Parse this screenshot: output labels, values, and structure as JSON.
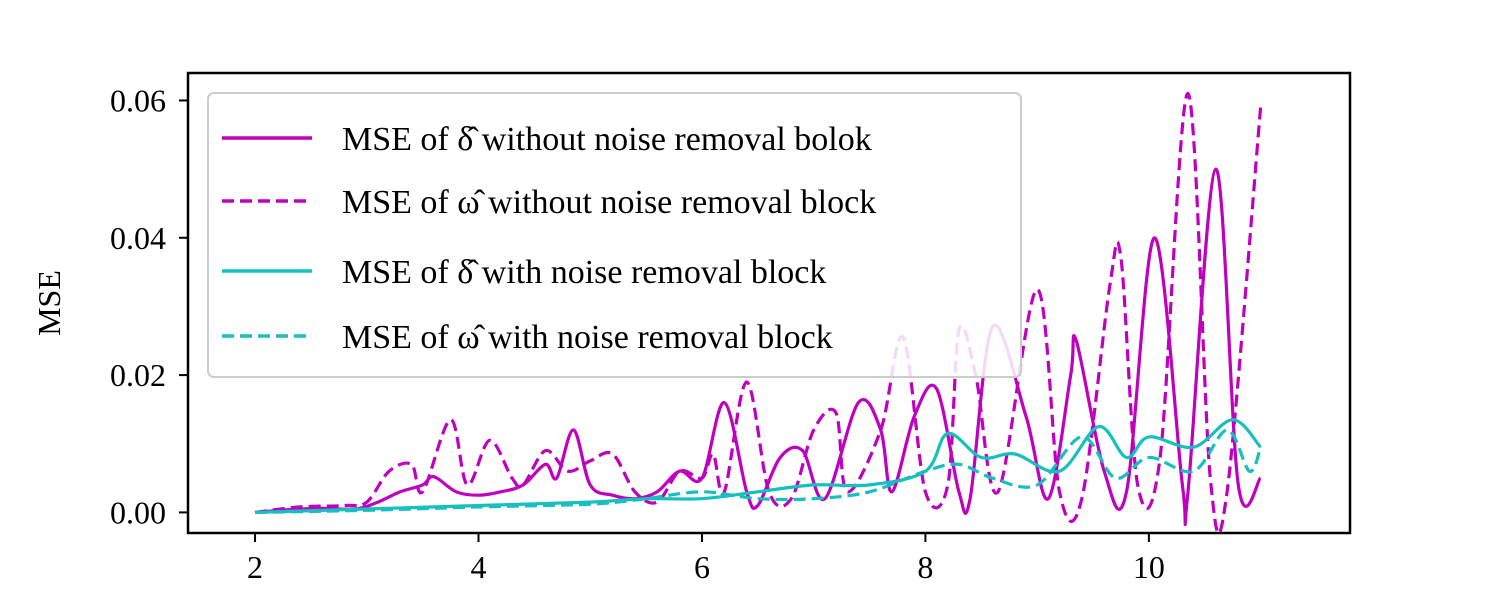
{
  "chart_data": {
    "type": "line",
    "title": "",
    "xlabel": "",
    "ylabel": "MSE",
    "xlim": [
      1.4,
      11.8
    ],
    "ylim": [
      -0.003,
      0.064
    ],
    "xticks": [
      2,
      4,
      6,
      8,
      10
    ],
    "yticks": [
      0.0,
      0.02,
      0.04,
      0.06
    ],
    "xtick_labels": [
      "2",
      "4",
      "6",
      "8",
      "10"
    ],
    "ytick_labels": [
      "0.00",
      "0.02",
      "0.04",
      "0.06"
    ],
    "grid": false,
    "legend_position": "upper-left",
    "series": [
      {
        "name": "MSE of δ̂ without noise removal bolok",
        "color": "#bf00bf",
        "dash": "solid",
        "points": [
          [
            2.0,
            0.0
          ],
          [
            2.3,
            0.0004
          ],
          [
            2.6,
            0.0006
          ],
          [
            2.9,
            0.0005
          ],
          [
            3.1,
            0.0015
          ],
          [
            3.3,
            0.003
          ],
          [
            3.5,
            0.004
          ],
          [
            3.6,
            0.0052
          ],
          [
            3.8,
            0.003
          ],
          [
            4.0,
            0.0025
          ],
          [
            4.2,
            0.003
          ],
          [
            4.4,
            0.004
          ],
          [
            4.6,
            0.007
          ],
          [
            4.7,
            0.005
          ],
          [
            4.85,
            0.012
          ],
          [
            5.0,
            0.004
          ],
          [
            5.2,
            0.0025
          ],
          [
            5.4,
            0.002
          ],
          [
            5.6,
            0.003
          ],
          [
            5.8,
            0.006
          ],
          [
            6.0,
            0.005
          ],
          [
            6.2,
            0.016
          ],
          [
            6.4,
            0.003
          ],
          [
            6.5,
            0.001
          ],
          [
            6.7,
            0.008
          ],
          [
            6.9,
            0.009
          ],
          [
            7.1,
            0.002
          ],
          [
            7.4,
            0.016
          ],
          [
            7.6,
            0.012
          ],
          [
            7.7,
            0.003
          ],
          [
            7.9,
            0.014
          ],
          [
            8.1,
            0.018
          ],
          [
            8.3,
            0.003
          ],
          [
            8.4,
            0.002
          ],
          [
            8.6,
            0.027
          ],
          [
            8.9,
            0.014
          ],
          [
            9.1,
            0.002
          ],
          [
            9.3,
            0.02
          ],
          [
            9.35,
            0.025
          ],
          [
            9.6,
            0.006
          ],
          [
            9.8,
            0.003
          ],
          [
            10.05,
            0.04
          ],
          [
            10.3,
            0.004
          ],
          [
            10.35,
            0.003
          ],
          [
            10.6,
            0.05
          ],
          [
            10.8,
            0.004
          ],
          [
            11.0,
            0.005
          ]
        ]
      },
      {
        "name": "MSE of ω̂ without noise removal block",
        "color": "#bf00bf",
        "dash": "dashed",
        "points": [
          [
            2.0,
            0.0
          ],
          [
            2.4,
            0.0008
          ],
          [
            2.8,
            0.001
          ],
          [
            3.0,
            0.0015
          ],
          [
            3.2,
            0.006
          ],
          [
            3.4,
            0.007
          ],
          [
            3.5,
            0.003
          ],
          [
            3.75,
            0.0135
          ],
          [
            3.9,
            0.004
          ],
          [
            4.1,
            0.0105
          ],
          [
            4.3,
            0.005
          ],
          [
            4.4,
            0.004
          ],
          [
            4.6,
            0.009
          ],
          [
            4.8,
            0.006
          ],
          [
            5.0,
            0.0075
          ],
          [
            5.2,
            0.0085
          ],
          [
            5.4,
            0.003
          ],
          [
            5.6,
            0.0015
          ],
          [
            5.8,
            0.006
          ],
          [
            6.0,
            0.005
          ],
          [
            6.1,
            0.0085
          ],
          [
            6.2,
            0.003
          ],
          [
            6.4,
            0.019
          ],
          [
            6.6,
            0.003
          ],
          [
            6.8,
            0.002
          ],
          [
            7.0,
            0.012
          ],
          [
            7.2,
            0.0145
          ],
          [
            7.3,
            0.003
          ],
          [
            7.6,
            0.012
          ],
          [
            7.8,
            0.0255
          ],
          [
            8.0,
            0.003
          ],
          [
            8.2,
            0.004
          ],
          [
            8.3,
            0.0265
          ],
          [
            8.45,
            0.02
          ],
          [
            8.65,
            0.003
          ],
          [
            9.0,
            0.0325
          ],
          [
            9.2,
            0.003
          ],
          [
            9.4,
            0.002
          ],
          [
            9.65,
            0.033
          ],
          [
            9.75,
            0.037
          ],
          [
            9.9,
            0.004
          ],
          [
            10.1,
            0.008
          ],
          [
            10.35,
            0.061
          ],
          [
            10.55,
            0.005
          ],
          [
            10.7,
            0.003
          ],
          [
            11.0,
            0.059
          ]
        ]
      },
      {
        "name": "MSE of δ̂ with noise removal block",
        "color": "#17bfbf",
        "dash": "solid",
        "points": [
          [
            2.0,
            0.0
          ],
          [
            3.0,
            0.0005
          ],
          [
            4.0,
            0.001
          ],
          [
            5.0,
            0.0015
          ],
          [
            5.5,
            0.002
          ],
          [
            6.0,
            0.002
          ],
          [
            6.5,
            0.003
          ],
          [
            7.0,
            0.004
          ],
          [
            7.5,
            0.004
          ],
          [
            8.0,
            0.006
          ],
          [
            8.2,
            0.0115
          ],
          [
            8.5,
            0.008
          ],
          [
            8.8,
            0.0085
          ],
          [
            9.2,
            0.006
          ],
          [
            9.55,
            0.0125
          ],
          [
            9.8,
            0.008
          ],
          [
            10.0,
            0.011
          ],
          [
            10.4,
            0.0095
          ],
          [
            10.75,
            0.0135
          ],
          [
            11.0,
            0.0095
          ]
        ]
      },
      {
        "name": "MSE of ω̂ with noise removal block",
        "color": "#17bfbf",
        "dash": "dashed",
        "points": [
          [
            2.0,
            0.0
          ],
          [
            3.0,
            0.0003
          ],
          [
            4.0,
            0.0008
          ],
          [
            5.0,
            0.0012
          ],
          [
            5.5,
            0.002
          ],
          [
            6.0,
            0.003
          ],
          [
            6.5,
            0.002
          ],
          [
            7.0,
            0.002
          ],
          [
            7.5,
            0.003
          ],
          [
            8.0,
            0.006
          ],
          [
            8.3,
            0.007
          ],
          [
            8.6,
            0.005
          ],
          [
            9.0,
            0.004
          ],
          [
            9.4,
            0.011
          ],
          [
            9.7,
            0.005
          ],
          [
            10.0,
            0.008
          ],
          [
            10.4,
            0.006
          ],
          [
            10.7,
            0.012
          ],
          [
            10.9,
            0.006
          ],
          [
            11.0,
            0.0095
          ]
        ]
      }
    ]
  }
}
